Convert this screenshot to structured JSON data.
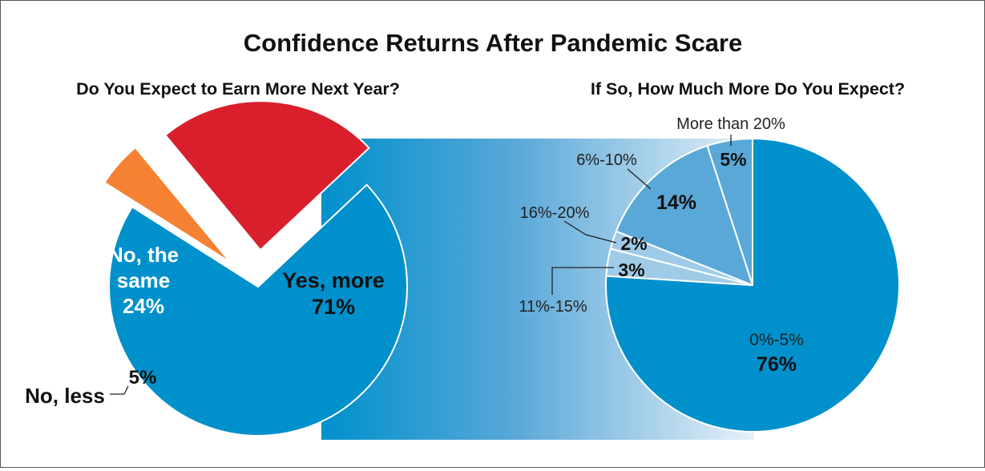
{
  "title": "Confidence Returns After Pandemic Scare",
  "colors": {
    "blue": "#0090cc",
    "mid_blue": "#5aa8d8",
    "light_blue": "#9fcbe8",
    "red": "#d91f2c",
    "orange": "#f58233"
  },
  "chart_data": [
    {
      "type": "pie",
      "title": "Do You Expect to Earn More Next Year?",
      "slices": [
        {
          "label": "Yes, more",
          "value": 71,
          "display": "71%",
          "color": "#0090cc"
        },
        {
          "label": "No, less",
          "value": 5,
          "display": "5%",
          "color": "#f58233"
        },
        {
          "label": "No, the same",
          "value": 24,
          "display": "24%",
          "color": "#d91f2c"
        }
      ],
      "label_lines": {
        "yes": [
          "Yes, more",
          "71%"
        ],
        "same": [
          "No, the",
          "same",
          "24%"
        ],
        "less_pct": "5%",
        "less_name": "No, less"
      }
    },
    {
      "type": "pie",
      "title": "If So, How Much More Do You Expect?",
      "slices": [
        {
          "label": "0%-5%",
          "value": 76,
          "display": "76%",
          "color": "#0090cc"
        },
        {
          "label": "11%-15%",
          "value": 3,
          "display": "3%",
          "color": "#9fcbe8"
        },
        {
          "label": "16%-20%",
          "value": 2,
          "display": "2%",
          "color": "#9fcbe8"
        },
        {
          "label": "6%-10%",
          "value": 14,
          "display": "14%",
          "color": "#5aa8d8"
        },
        {
          "label": "More than 20%",
          "value": 5,
          "display": "5%",
          "color": "#5aa8d8"
        }
      ]
    }
  ]
}
